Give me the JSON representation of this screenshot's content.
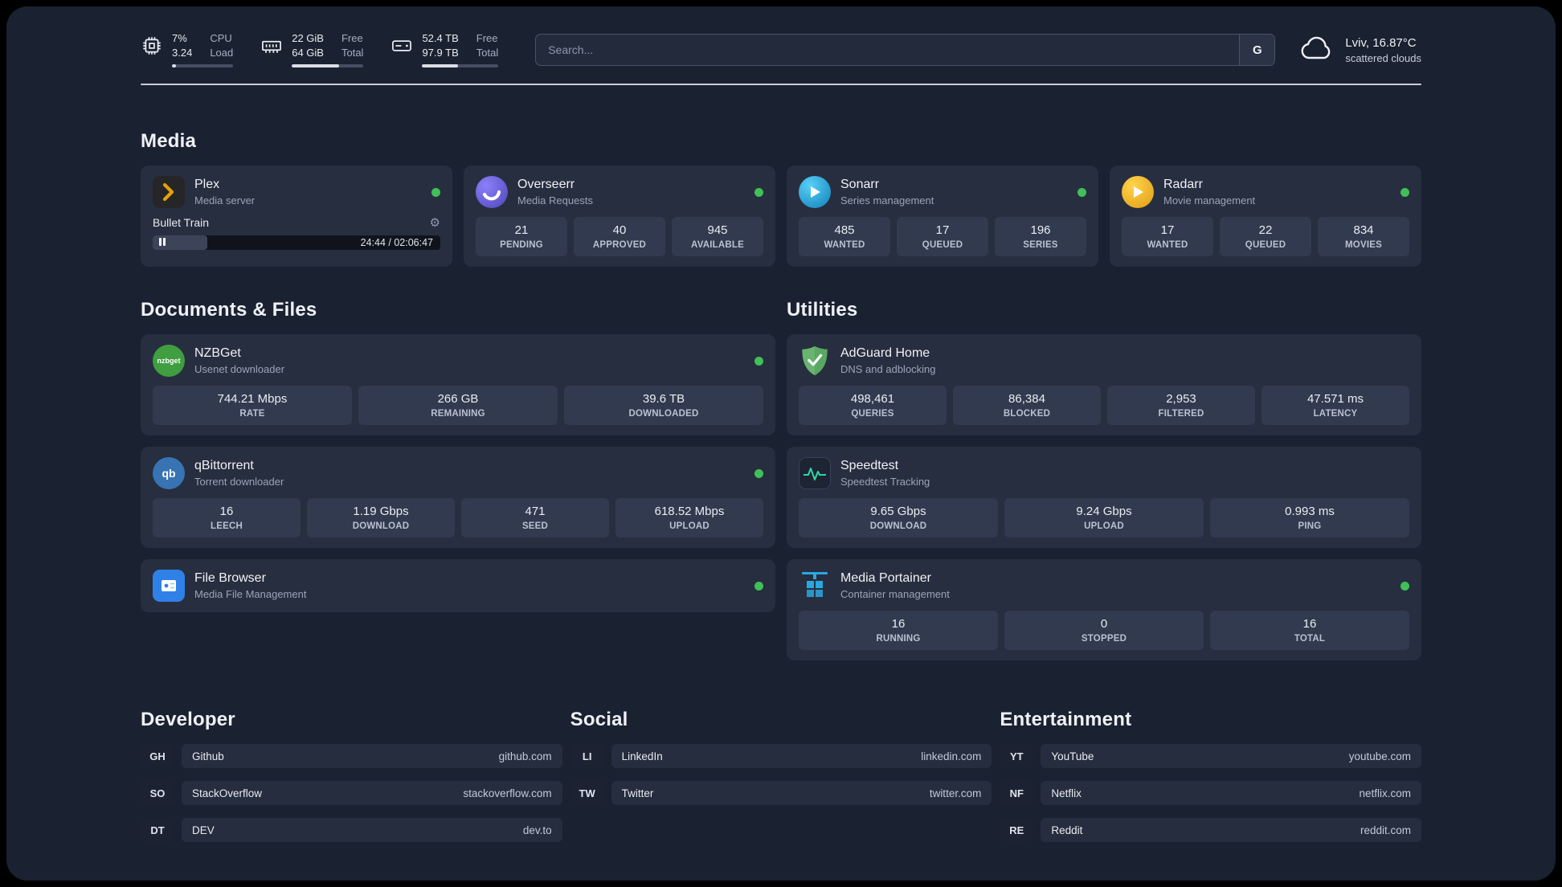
{
  "colors": {
    "page_background": "#1a2130",
    "card_background": "#272e3f",
    "stat_box_background": "#313a4e",
    "status_online_green": "#40c057",
    "divider": "#c9cdd7",
    "plex_amber": "#e5a00d",
    "overseerr_purple": "#6c5ce7",
    "sonarr_blue": "#35c5f4",
    "radarr_gold": "#ffc230",
    "nzbget_green": "#3f9e3f",
    "qbittorrent_blue": "#3873b3",
    "filebrowser_blue": "#2f81e8",
    "adguard_green": "#68b470",
    "speedtest_green": "#2fd6a5",
    "portainer_blue": "#29a8df"
  },
  "header": {
    "cpu": {
      "icon": "cpu-icon",
      "value_top": "7%",
      "label_top": "CPU",
      "value_bottom": "3.24",
      "label_bottom": "Load",
      "usage_percent": 7
    },
    "memory": {
      "icon": "memory-icon",
      "value_top": "22 GiB",
      "label_top": "Free",
      "value_bottom": "64 GiB",
      "label_bottom": "Total",
      "usage_percent": 66
    },
    "storage": {
      "icon": "hard-drive-icon",
      "value_top": "52.4 TB",
      "label_top": "Free",
      "value_bottom": "97.9 TB",
      "label_bottom": "Total",
      "usage_percent": 47
    },
    "search": {
      "placeholder": "Search...",
      "engine_button": "G"
    },
    "weather": {
      "icon": "cloud-icon",
      "location_temp": "Lviv, 16.87°C",
      "condition": "scattered clouds"
    }
  },
  "media": {
    "title": "Media",
    "plex": {
      "name": "Plex",
      "description": "Media server",
      "online": true,
      "now_playing": {
        "track": "Bullet Train",
        "time": "24:44 / 02:06:47",
        "progress_percent": 19
      }
    },
    "overseerr": {
      "name": "Overseerr",
      "description": "Media Requests",
      "online": true,
      "stats": [
        {
          "value": "21",
          "label": "PENDING"
        },
        {
          "value": "40",
          "label": "APPROVED"
        },
        {
          "value": "945",
          "label": "AVAILABLE"
        }
      ]
    },
    "sonarr": {
      "name": "Sonarr",
      "description": "Series management",
      "online": true,
      "stats": [
        {
          "value": "485",
          "label": "WANTED"
        },
        {
          "value": "17",
          "label": "QUEUED"
        },
        {
          "value": "196",
          "label": "SERIES"
        }
      ]
    },
    "radarr": {
      "name": "Radarr",
      "description": "Movie management",
      "online": true,
      "stats": [
        {
          "value": "17",
          "label": "WANTED"
        },
        {
          "value": "22",
          "label": "QUEUED"
        },
        {
          "value": "834",
          "label": "MOVIES"
        }
      ]
    }
  },
  "documents": {
    "title": "Documents & Files",
    "nzbget": {
      "name": "NZBGet",
      "description": "Usenet downloader",
      "online": true,
      "stats": [
        {
          "value": "744.21 Mbps",
          "label": "RATE"
        },
        {
          "value": "266 GB",
          "label": "REMAINING"
        },
        {
          "value": "39.6 TB",
          "label": "DOWNLOADED"
        }
      ]
    },
    "qbittorrent": {
      "name": "qBittorrent",
      "description": "Torrent downloader",
      "online": true,
      "stats": [
        {
          "value": "16",
          "label": "LEECH"
        },
        {
          "value": "1.19 Gbps",
          "label": "DOWNLOAD"
        },
        {
          "value": "471",
          "label": "SEED"
        },
        {
          "value": "618.52 Mbps",
          "label": "UPLOAD"
        }
      ]
    },
    "filebrowser": {
      "name": "File Browser",
      "description": "Media File Management",
      "online": true
    }
  },
  "utilities": {
    "title": "Utilities",
    "adguard": {
      "name": "AdGuard Home",
      "description": "DNS and adblocking",
      "stats": [
        {
          "value": "498,461",
          "label": "QUERIES"
        },
        {
          "value": "86,384",
          "label": "BLOCKED"
        },
        {
          "value": "2,953",
          "label": "FILTERED"
        },
        {
          "value": "47.571 ms",
          "label": "LATENCY"
        }
      ]
    },
    "speedtest": {
      "name": "Speedtest",
      "description": "Speedtest Tracking",
      "stats": [
        {
          "value": "9.65 Gbps",
          "label": "DOWNLOAD"
        },
        {
          "value": "9.24 Gbps",
          "label": "UPLOAD"
        },
        {
          "value": "0.993 ms",
          "label": "PING"
        }
      ]
    },
    "portainer": {
      "name": "Media Portainer",
      "description": "Container management",
      "online": true,
      "stats": [
        {
          "value": "16",
          "label": "RUNNING"
        },
        {
          "value": "0",
          "label": "STOPPED"
        },
        {
          "value": "16",
          "label": "TOTAL"
        }
      ]
    }
  },
  "bookmarks": {
    "developer": {
      "title": "Developer",
      "links": [
        {
          "abbr": "GH",
          "name": "Github",
          "url": "github.com"
        },
        {
          "abbr": "SO",
          "name": "StackOverflow",
          "url": "stackoverflow.com"
        },
        {
          "abbr": "DT",
          "name": "DEV",
          "url": "dev.to"
        }
      ]
    },
    "social": {
      "title": "Social",
      "links": [
        {
          "abbr": "LI",
          "name": "LinkedIn",
          "url": "linkedin.com"
        },
        {
          "abbr": "TW",
          "name": "Twitter",
          "url": "twitter.com"
        }
      ]
    },
    "entertainment": {
      "title": "Entertainment",
      "links": [
        {
          "abbr": "YT",
          "name": "YouTube",
          "url": "youtube.com"
        },
        {
          "abbr": "NF",
          "name": "Netflix",
          "url": "netflix.com"
        },
        {
          "abbr": "RE",
          "name": "Reddit",
          "url": "reddit.com"
        }
      ]
    }
  }
}
